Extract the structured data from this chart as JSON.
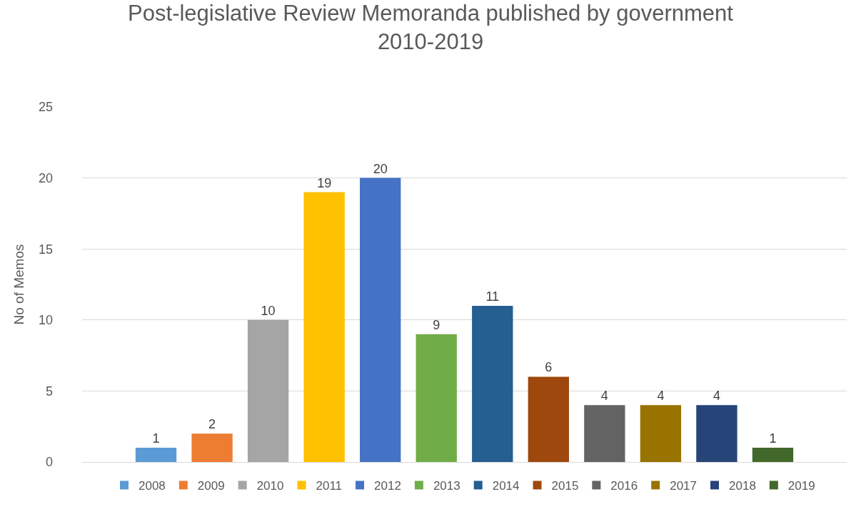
{
  "chart_data": {
    "type": "bar",
    "title": "Post-legislative Review Memoranda published by government\n2010-2019",
    "ylabel": "No of Memos",
    "categories": [
      null
    ],
    "ylim": [
      0,
      25
    ],
    "yticks": [
      0,
      5,
      10,
      15,
      20,
      25
    ],
    "grid": "y",
    "legend": "bottom",
    "data_labels": true,
    "series": [
      {
        "name": "2008",
        "color": "#5b9bd5",
        "values": [
          1
        ]
      },
      {
        "name": "2009",
        "color": "#ed7d31",
        "values": [
          2
        ]
      },
      {
        "name": "2010",
        "color": "#a5a5a5",
        "values": [
          10
        ]
      },
      {
        "name": "2011",
        "color": "#ffc000",
        "values": [
          19
        ]
      },
      {
        "name": "2012",
        "color": "#4472c4",
        "values": [
          20
        ]
      },
      {
        "name": "2013",
        "color": "#70ad47",
        "values": [
          9
        ]
      },
      {
        "name": "2014",
        "color": "#255e91",
        "values": [
          11
        ]
      },
      {
        "name": "2015",
        "color": "#9e480e",
        "values": [
          6
        ]
      },
      {
        "name": "2016",
        "color": "#636363",
        "values": [
          4
        ]
      },
      {
        "name": "2017",
        "color": "#997300",
        "values": [
          4
        ]
      },
      {
        "name": "2018",
        "color": "#264478",
        "values": [
          4
        ]
      },
      {
        "name": "2019",
        "color": "#43682b",
        "values": [
          1
        ]
      }
    ]
  }
}
